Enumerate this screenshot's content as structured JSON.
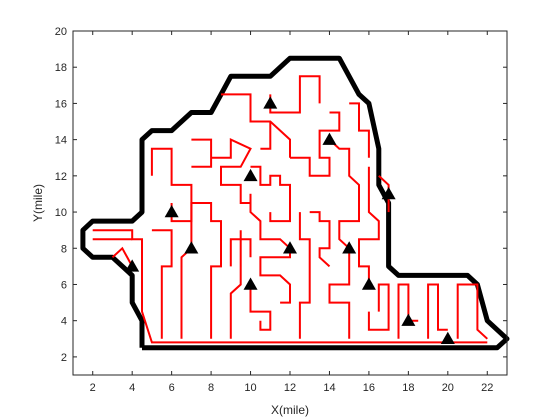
{
  "chart_data": {
    "type": "line",
    "title": "",
    "xlabel": "X(mile)",
    "ylabel": "Y(mile)",
    "xlim": [
      1,
      23
    ],
    "ylim": [
      1,
      20
    ],
    "xticks": [
      2,
      4,
      6,
      8,
      10,
      12,
      14,
      16,
      18,
      20,
      22
    ],
    "yticks": [
      2,
      4,
      6,
      8,
      10,
      12,
      14,
      16,
      18,
      20
    ],
    "grid": false,
    "legend": "none",
    "boundary": {
      "color": "#000000",
      "points": [
        [
          4.5,
          2.5
        ],
        [
          22.5,
          2.5
        ],
        [
          23,
          3
        ],
        [
          22,
          4
        ],
        [
          21.5,
          6
        ],
        [
          21,
          6.5
        ],
        [
          17.5,
          6.5
        ],
        [
          17,
          7
        ],
        [
          17,
          10.5
        ],
        [
          16.5,
          11.5
        ],
        [
          16.5,
          13.5
        ],
        [
          16,
          16
        ],
        [
          15.5,
          16.5
        ],
        [
          14.5,
          18.5
        ],
        [
          12,
          18.5
        ],
        [
          11,
          17.5
        ],
        [
          9,
          17.5
        ],
        [
          8.5,
          16.5
        ],
        [
          8,
          15.5
        ],
        [
          7,
          15.5
        ],
        [
          6,
          14.5
        ],
        [
          5,
          14.5
        ],
        [
          4.5,
          14
        ],
        [
          4.5,
          10
        ],
        [
          4,
          9.5
        ],
        [
          2,
          9.5
        ],
        [
          1.5,
          9
        ],
        [
          1.5,
          8
        ],
        [
          2,
          7.5
        ],
        [
          3,
          7.5
        ],
        [
          4,
          6.5
        ],
        [
          4,
          5
        ],
        [
          4.5,
          4
        ],
        [
          4.5,
          2.5
        ]
      ]
    },
    "route": {
      "color": "#ff0000",
      "paths": [
        [
          [
            2,
            9
          ],
          [
            4,
            9
          ],
          [
            4,
            8.5
          ],
          [
            4.5,
            8.5
          ],
          [
            4.5,
            4.5
          ],
          [
            5,
            2.8
          ],
          [
            22,
            2.8
          ]
        ],
        [
          [
            2,
            8.5
          ],
          [
            4,
            8.5
          ]
        ],
        [
          [
            3,
            7.5
          ],
          [
            3.5,
            8
          ],
          [
            4,
            7
          ]
        ],
        [
          [
            5,
            9
          ],
          [
            6,
            9
          ],
          [
            6,
            7
          ],
          [
            5.5,
            7
          ],
          [
            5.5,
            3
          ]
        ],
        [
          [
            5,
            12
          ],
          [
            5,
            13.5
          ],
          [
            6,
            13.5
          ],
          [
            6,
            11.5
          ],
          [
            7,
            11.5
          ],
          [
            7,
            9.5
          ],
          [
            6,
            9.5
          ],
          [
            6,
            10.5
          ]
        ],
        [
          [
            6.5,
            3
          ],
          [
            6.5,
            7.5
          ],
          [
            7,
            8
          ],
          [
            7,
            10.5
          ],
          [
            8,
            10.5
          ],
          [
            8,
            9.5
          ],
          [
            8.5,
            9.5
          ],
          [
            8.5,
            7
          ],
          [
            8,
            7
          ],
          [
            8,
            3
          ]
        ],
        [
          [
            7,
            14
          ],
          [
            8,
            14
          ],
          [
            8,
            12.5
          ],
          [
            7,
            12.5
          ]
        ],
        [
          [
            8,
            13
          ],
          [
            9,
            13
          ],
          [
            9,
            14
          ],
          [
            10,
            13.5
          ],
          [
            9.5,
            12.5
          ],
          [
            8.5,
            12.5
          ],
          [
            8.5,
            11.5
          ],
          [
            9.5,
            11.5
          ],
          [
            9.5,
            10.5
          ],
          [
            10,
            10.5
          ],
          [
            10,
            11
          ]
        ],
        [
          [
            9,
            3
          ],
          [
            9,
            5.5
          ],
          [
            9.5,
            6
          ],
          [
            9.5,
            9
          ]
        ],
        [
          [
            9,
            7
          ],
          [
            9,
            8.5
          ],
          [
            10,
            8.5
          ],
          [
            10,
            7.5
          ]
        ],
        [
          [
            8.5,
            16.5
          ],
          [
            10,
            16.5
          ],
          [
            10,
            15
          ],
          [
            11,
            15
          ],
          [
            12,
            14
          ],
          [
            12,
            13
          ]
        ],
        [
          [
            10.5,
            13.5
          ],
          [
            11,
            13.5
          ],
          [
            11,
            15
          ]
        ],
        [
          [
            11,
            16.5
          ],
          [
            11,
            15.5
          ],
          [
            12.5,
            15.5
          ],
          [
            12.5,
            17.5
          ],
          [
            13.5,
            17.5
          ],
          [
            13.5,
            16
          ]
        ],
        [
          [
            10,
            12.5
          ],
          [
            10.5,
            12.5
          ],
          [
            10.5,
            11.5
          ],
          [
            11,
            11.5
          ],
          [
            11,
            12
          ],
          [
            11.5,
            12
          ],
          [
            11.5,
            11.5
          ],
          [
            12,
            11.5
          ],
          [
            12,
            9.5
          ],
          [
            11,
            9.5
          ],
          [
            11,
            10
          ]
        ],
        [
          [
            10,
            11
          ],
          [
            10,
            10
          ],
          [
            10.5,
            9.5
          ],
          [
            10.5,
            8.5
          ],
          [
            11.5,
            8.5
          ],
          [
            12,
            8
          ],
          [
            12,
            7.5
          ],
          [
            10.5,
            7.5
          ],
          [
            10.5,
            6.5
          ],
          [
            11.5,
            6.5
          ],
          [
            12,
            6
          ],
          [
            12,
            5
          ],
          [
            11.5,
            5
          ]
        ],
        [
          [
            10,
            6
          ],
          [
            10,
            4.5
          ],
          [
            11,
            4.5
          ],
          [
            11,
            3.5
          ],
          [
            10.5,
            3.5
          ],
          [
            10.5,
            4
          ]
        ],
        [
          [
            12.5,
            3
          ],
          [
            12.5,
            5
          ],
          [
            13,
            5
          ],
          [
            13,
            8
          ],
          [
            13,
            8.5
          ],
          [
            12.5,
            8.5
          ],
          [
            12.5,
            10
          ]
        ],
        [
          [
            12,
            13
          ],
          [
            13,
            13
          ],
          [
            13,
            12
          ],
          [
            14,
            12
          ],
          [
            14,
            13
          ],
          [
            13.5,
            13
          ],
          [
            13.5,
            14.5
          ],
          [
            14.5,
            14.5
          ],
          [
            14.5,
            15.5
          ],
          [
            14,
            15.5
          ]
        ],
        [
          [
            13,
            10
          ],
          [
            13.5,
            10
          ],
          [
            13.5,
            9.5
          ],
          [
            14,
            9.5
          ],
          [
            14,
            8
          ],
          [
            13.5,
            8
          ],
          [
            13.5,
            7.5
          ],
          [
            14,
            7
          ]
        ],
        [
          [
            14,
            14
          ],
          [
            14.5,
            13.5
          ],
          [
            15,
            13.5
          ],
          [
            15,
            12
          ],
          [
            15.5,
            11.5
          ],
          [
            15.5,
            9.5
          ],
          [
            14.5,
            9.5
          ],
          [
            14.5,
            8.5
          ],
          [
            15,
            8
          ],
          [
            15,
            6
          ],
          [
            14,
            6
          ],
          [
            14,
            5
          ],
          [
            15,
            5
          ],
          [
            15,
            3
          ]
        ],
        [
          [
            15,
            16
          ],
          [
            15.5,
            16
          ],
          [
            15.5,
            14.5
          ],
          [
            16,
            14.5
          ],
          [
            16,
            13
          ]
        ],
        [
          [
            16,
            12.5
          ],
          [
            16,
            10
          ],
          [
            16.5,
            9.5
          ],
          [
            16.5,
            8.5
          ],
          [
            15.5,
            8.5
          ],
          [
            15.5,
            7
          ],
          [
            16,
            7
          ],
          [
            16,
            6
          ]
        ],
        [
          [
            16.5,
            12
          ],
          [
            17,
            11.5
          ],
          [
            17,
            10
          ]
        ],
        [
          [
            16,
            4.5
          ],
          [
            16,
            3.5
          ],
          [
            17,
            3.5
          ],
          [
            17,
            6
          ],
          [
            16.5,
            6
          ],
          [
            16.5,
            4.5
          ]
        ],
        [
          [
            17.5,
            3
          ],
          [
            17.5,
            6
          ],
          [
            18,
            6
          ],
          [
            18,
            4
          ],
          [
            18.5,
            4
          ]
        ],
        [
          [
            19,
            3
          ],
          [
            19,
            6
          ],
          [
            19.5,
            6
          ],
          [
            19.5,
            3.5
          ],
          [
            20,
            3.5
          ]
        ],
        [
          [
            20.5,
            3
          ],
          [
            20.5,
            6
          ],
          [
            21.5,
            6
          ],
          [
            21.5,
            3.5
          ],
          [
            22,
            3
          ]
        ]
      ]
    },
    "points": {
      "marker": "triangle",
      "color": "#000000",
      "values": [
        [
          11,
          16
        ],
        [
          14,
          14
        ],
        [
          10,
          12
        ],
        [
          17,
          11
        ],
        [
          6,
          10
        ],
        [
          7,
          8
        ],
        [
          12,
          8
        ],
        [
          15,
          8
        ],
        [
          4,
          7
        ],
        [
          10,
          6
        ],
        [
          16,
          6
        ],
        [
          18,
          4
        ],
        [
          20,
          3
        ]
      ]
    }
  }
}
